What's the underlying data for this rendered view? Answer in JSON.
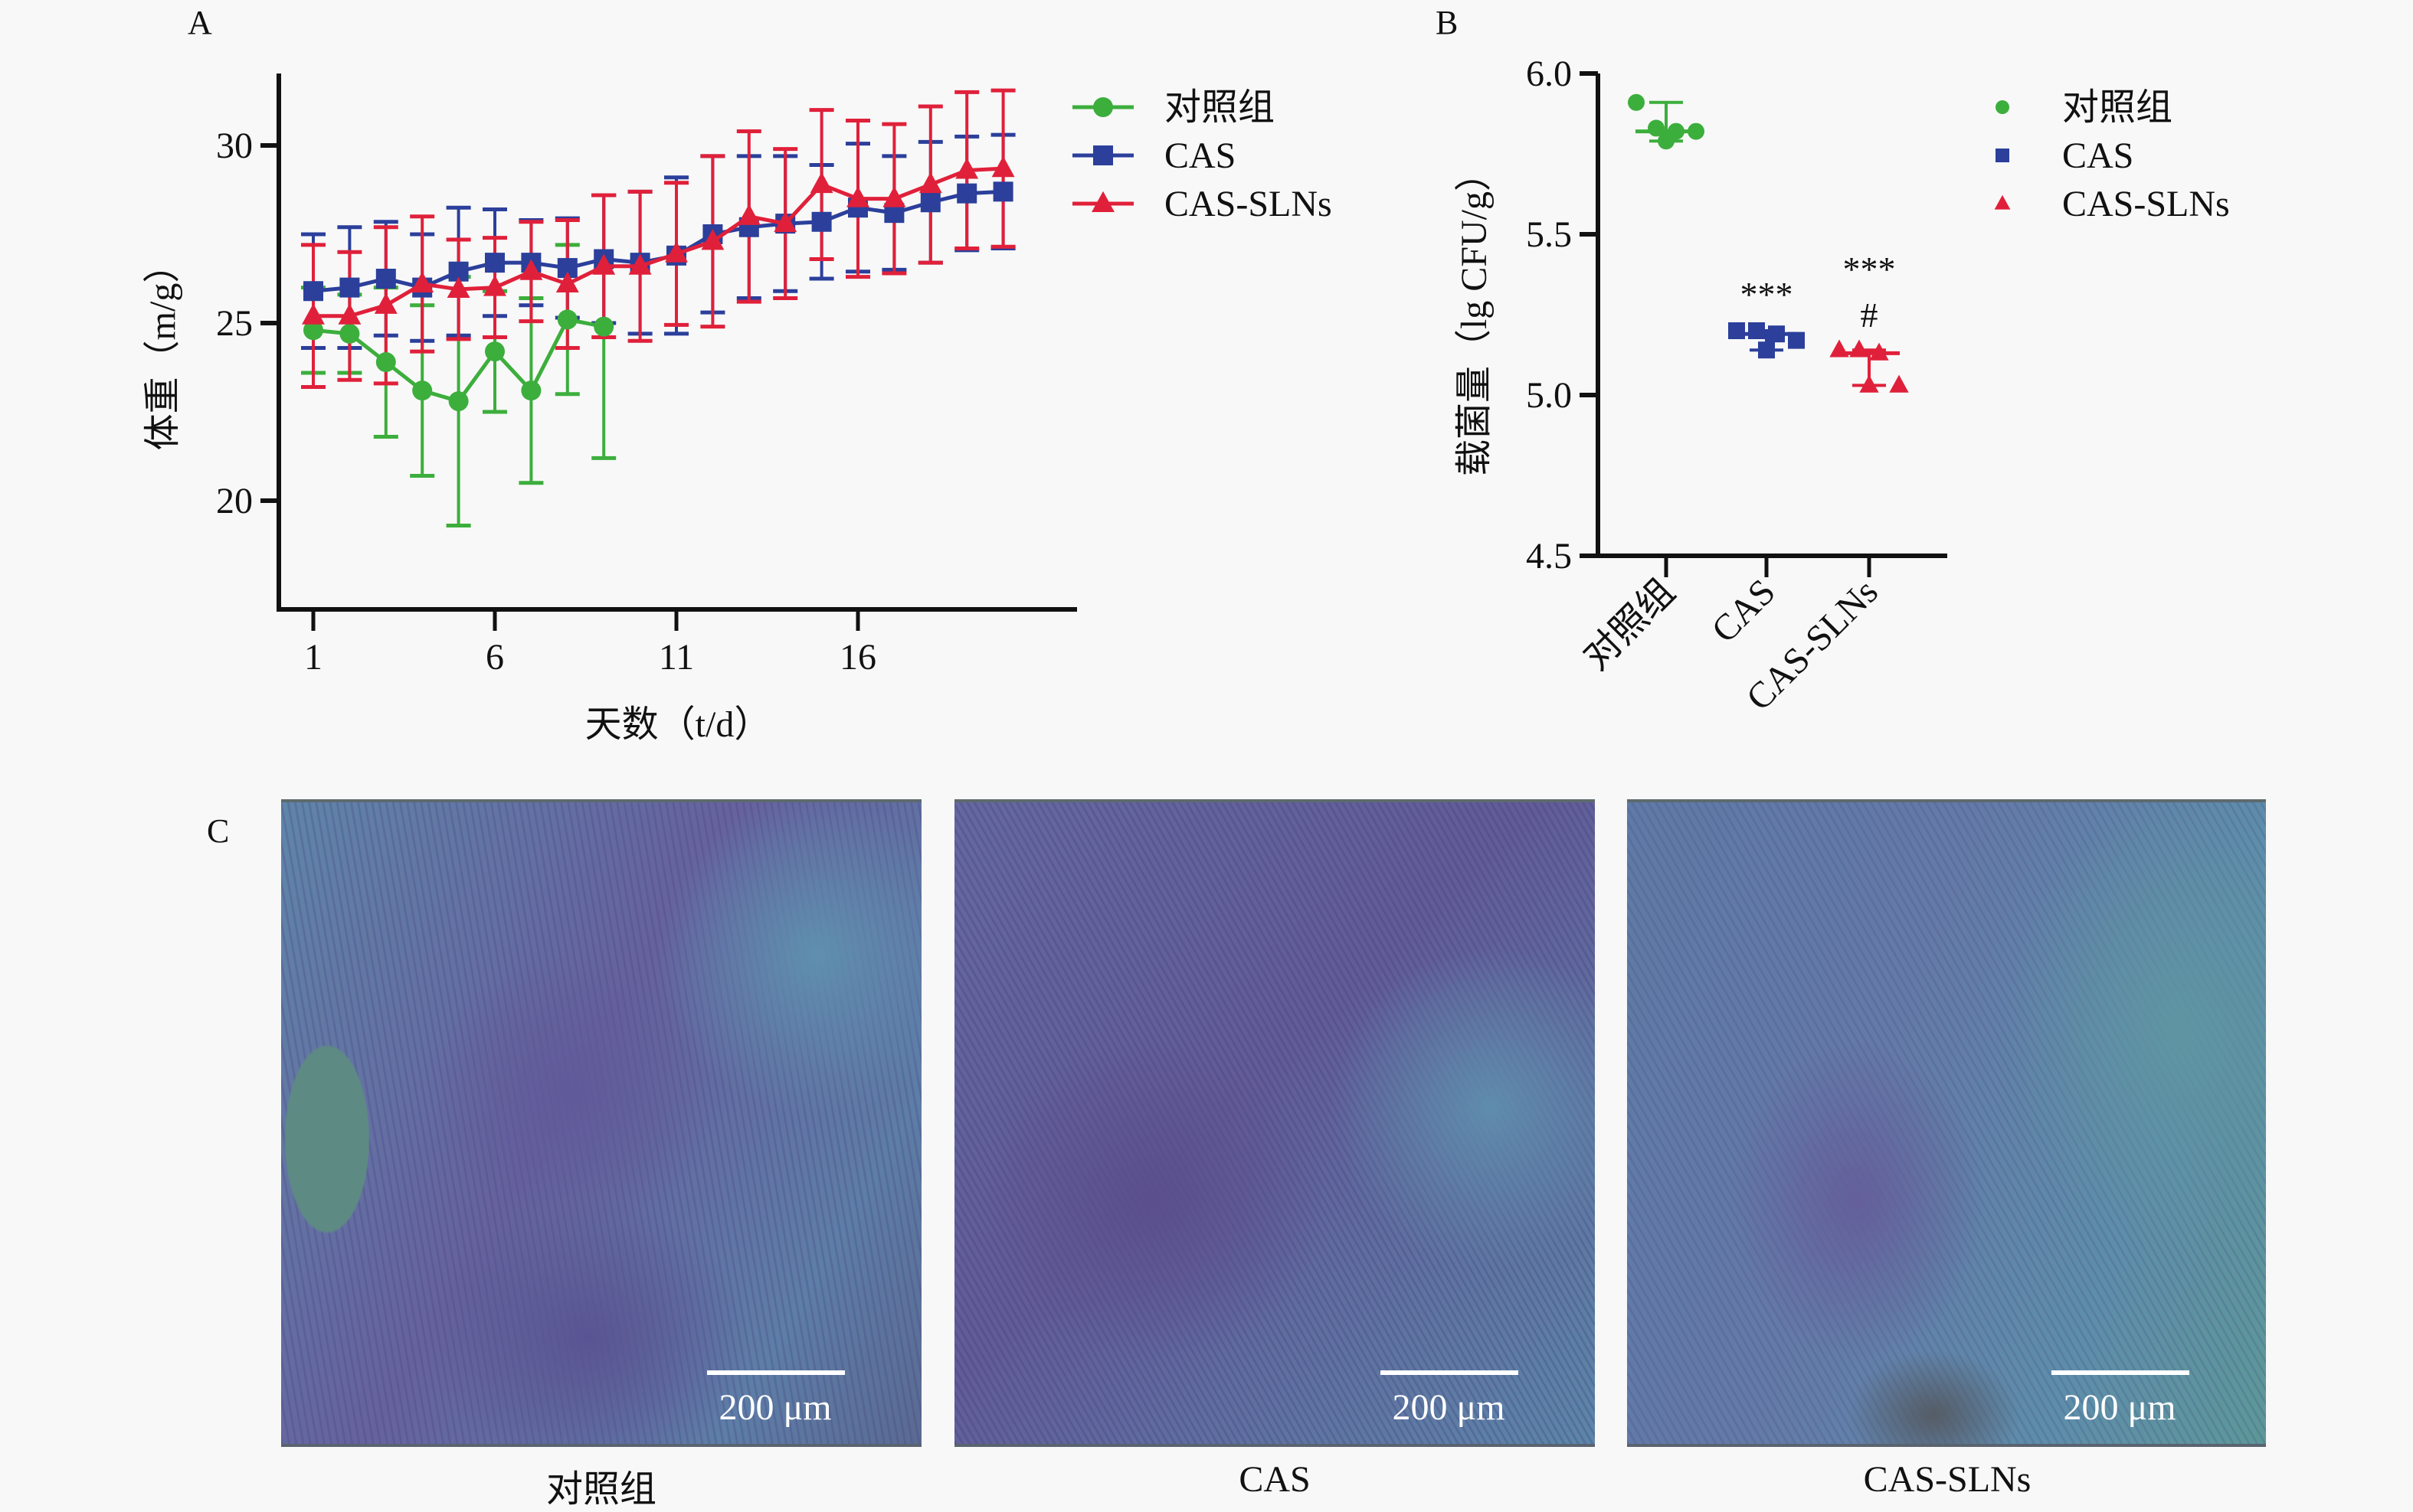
{
  "panels": {
    "a_label": "A",
    "b_label": "B",
    "c_label": "C"
  },
  "colors": {
    "control": "#3cae3c",
    "cas": "#2b3f9b",
    "cas_sln": "#e0203a",
    "axis": "#111111"
  },
  "chart_data": [
    {
      "type": "line",
      "title": "A",
      "xlabel": "天数（t/d）",
      "ylabel": "体重（m/g）",
      "xlim": [
        0,
        21
      ],
      "ylim": [
        17,
        32
      ],
      "xticks": [
        1,
        6,
        11,
        16
      ],
      "yticks": [
        20,
        25,
        30
      ],
      "legend_position": "top-right",
      "error_bars": true,
      "series": [
        {
          "name": "对照组",
          "marker": "circle",
          "x": [
            1,
            2,
            3,
            4,
            5,
            6,
            7,
            8,
            9
          ],
          "values": [
            24.8,
            24.7,
            23.9,
            23.1,
            22.8,
            24.2,
            23.1,
            25.1,
            24.9
          ],
          "errors": [
            1.2,
            1.1,
            2.1,
            2.4,
            3.5,
            1.7,
            2.6,
            2.1,
            3.7
          ]
        },
        {
          "name": "CAS",
          "marker": "square",
          "x": [
            1,
            2,
            3,
            4,
            5,
            6,
            7,
            8,
            9,
            10,
            11,
            12,
            13,
            14,
            15,
            16,
            17,
            18,
            19,
            20
          ],
          "values": [
            25.9,
            26.0,
            26.25,
            26.0,
            26.45,
            26.7,
            26.7,
            26.55,
            26.8,
            26.7,
            26.9,
            27.5,
            27.7,
            27.8,
            27.85,
            28.25,
            28.1,
            28.4,
            28.65,
            28.7
          ],
          "errors": [
            1.6,
            1.7,
            1.6,
            1.5,
            1.8,
            1.5,
            1.2,
            1.4,
            1.8,
            2.0,
            2.2,
            2.2,
            2.0,
            1.9,
            1.6,
            1.8,
            1.6,
            1.7,
            1.6,
            1.6
          ]
        },
        {
          "name": "CAS-SLNs",
          "marker": "triangle",
          "x": [
            1,
            2,
            3,
            4,
            5,
            6,
            7,
            8,
            9,
            10,
            11,
            12,
            13,
            14,
            15,
            16,
            17,
            18,
            19,
            20
          ],
          "values": [
            25.2,
            25.2,
            25.5,
            26.1,
            25.95,
            26.0,
            26.45,
            26.1,
            26.6,
            26.6,
            26.95,
            27.3,
            28.0,
            27.8,
            28.9,
            28.5,
            28.5,
            28.9,
            29.3,
            29.35
          ],
          "errors": [
            2.0,
            1.8,
            2.2,
            1.9,
            1.4,
            1.4,
            1.4,
            1.8,
            2.0,
            2.1,
            2.0,
            2.4,
            2.4,
            2.1,
            2.1,
            2.2,
            2.1,
            2.2,
            2.2,
            2.2
          ]
        }
      ]
    },
    {
      "type": "scatter",
      "title": "B",
      "xlabel": "",
      "ylabel": "载菌量（lg CFU/g）",
      "ylim": [
        4.5,
        6.0
      ],
      "yticks": [
        "4.5",
        "5.0",
        "5.5",
        "6.0"
      ],
      "categories": [
        "对照组",
        "CAS",
        "CAS-SLNs"
      ],
      "legend_position": "top-right",
      "series": [
        {
          "name": "对照组",
          "marker": "circle",
          "values": [
            5.91,
            5.83,
            5.82,
            5.82,
            5.79
          ],
          "median": 5.82,
          "range": [
            5.79,
            5.91
          ],
          "annotation": ""
        },
        {
          "name": "CAS",
          "marker": "square",
          "values": [
            5.2,
            5.2,
            5.19,
            5.17,
            5.14
          ],
          "median": 5.19,
          "range": [
            5.14,
            5.2
          ],
          "annotation": "***"
        },
        {
          "name": "CAS-SLNs",
          "marker": "triangle",
          "values": [
            5.14,
            5.14,
            5.13,
            5.03,
            5.03
          ],
          "median": 5.13,
          "range": [
            5.03,
            5.14
          ],
          "annotation": "***",
          "annotation2": "#"
        }
      ]
    }
  ],
  "micrographs": [
    {
      "caption": "对照组",
      "scale_label": "200 μm"
    },
    {
      "caption": "CAS",
      "scale_label": "200 μm"
    },
    {
      "caption": "CAS-SLNs",
      "scale_label": "200 μm"
    }
  ]
}
